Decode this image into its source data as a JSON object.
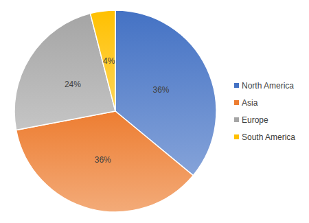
{
  "chart_data": {
    "type": "pie",
    "categories": [
      "North America",
      "Asia",
      "Europe",
      "South America"
    ],
    "values": [
      36,
      36,
      24,
      4
    ],
    "value_labels": [
      "36%",
      "36%",
      "24%",
      "4%"
    ],
    "colors": [
      "#4472c4",
      "#ed7d31",
      "#a5a5a5",
      "#ffc000"
    ],
    "data_labels": true,
    "legend": "right"
  }
}
